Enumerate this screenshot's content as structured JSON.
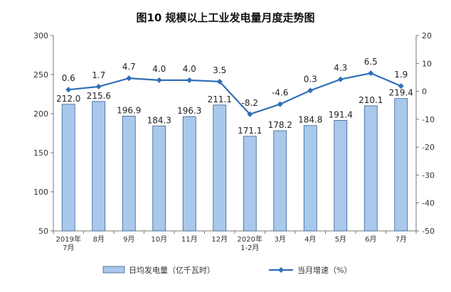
{
  "chart_data": {
    "type": "bar",
    "title": "图10  规模以上工业发电量月度走势图",
    "categories": [
      "2019年\n7月",
      "8月",
      "9月",
      "10月",
      "11月",
      "12月",
      "2020年\n1-2月",
      "3月",
      "4月",
      "5月",
      "6月",
      "7月"
    ],
    "series": [
      {
        "name": "日均发电量（亿千瓦时）",
        "type": "bar",
        "axis": "left",
        "color": "#a8c8ec",
        "values": [
          212.0,
          215.6,
          196.9,
          184.3,
          196.3,
          211.1,
          171.1,
          178.2,
          184.8,
          191.4,
          210.1,
          219.4
        ],
        "labels": [
          "212.0",
          "215.6",
          "196.9",
          "184.3",
          "196.3",
          "211.1",
          "171.1",
          "178.2",
          "184.8",
          "191.4",
          "210.1",
          "219.4"
        ]
      },
      {
        "name": "当月增速（%）",
        "type": "line",
        "axis": "right",
        "color": "#2f6fb6",
        "values": [
          0.6,
          1.7,
          4.7,
          4.0,
          4.0,
          3.5,
          -8.2,
          -4.6,
          0.3,
          4.3,
          6.5,
          1.9
        ],
        "labels": [
          "0.6",
          "1.7",
          "4.7",
          "4.0",
          "4.0",
          "3.5",
          "-8.2",
          "-4.6",
          "0.3",
          "4.3",
          "6.5",
          "1.9"
        ]
      }
    ],
    "y_left": {
      "range": [
        50,
        300
      ],
      "ticks": [
        "50",
        "100",
        "150",
        "200",
        "250",
        "300"
      ]
    },
    "y_right": {
      "range": [
        -50,
        20
      ],
      "ticks": [
        "-50",
        "-40",
        "-30",
        "-20",
        "-10",
        "0",
        "10",
        "20"
      ]
    },
    "grid": false,
    "legend": "bottom"
  }
}
